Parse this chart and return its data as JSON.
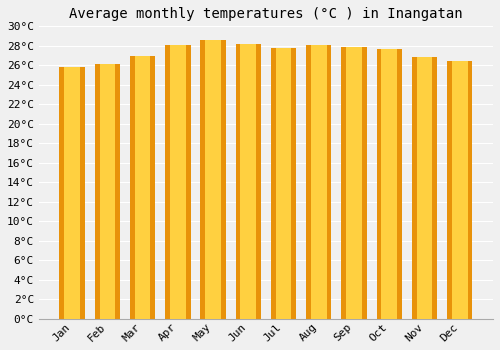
{
  "title": "Average monthly temperatures (°C ) in Inangatan",
  "months": [
    "Jan",
    "Feb",
    "Mar",
    "Apr",
    "May",
    "Jun",
    "Jul",
    "Aug",
    "Sep",
    "Oct",
    "Nov",
    "Dec"
  ],
  "values": [
    25.8,
    26.1,
    27.0,
    28.1,
    28.6,
    28.2,
    27.8,
    28.1,
    27.9,
    27.7,
    26.9,
    26.4
  ],
  "bar_color_outer": "#E8920A",
  "bar_color_inner": "#FFD040",
  "ylim": [
    0,
    30
  ],
  "ytick_step": 2,
  "background_color": "#f0f0f0",
  "plot_bg_color": "#f0f0f0",
  "grid_color": "#ffffff",
  "title_fontsize": 10,
  "tick_fontsize": 8
}
